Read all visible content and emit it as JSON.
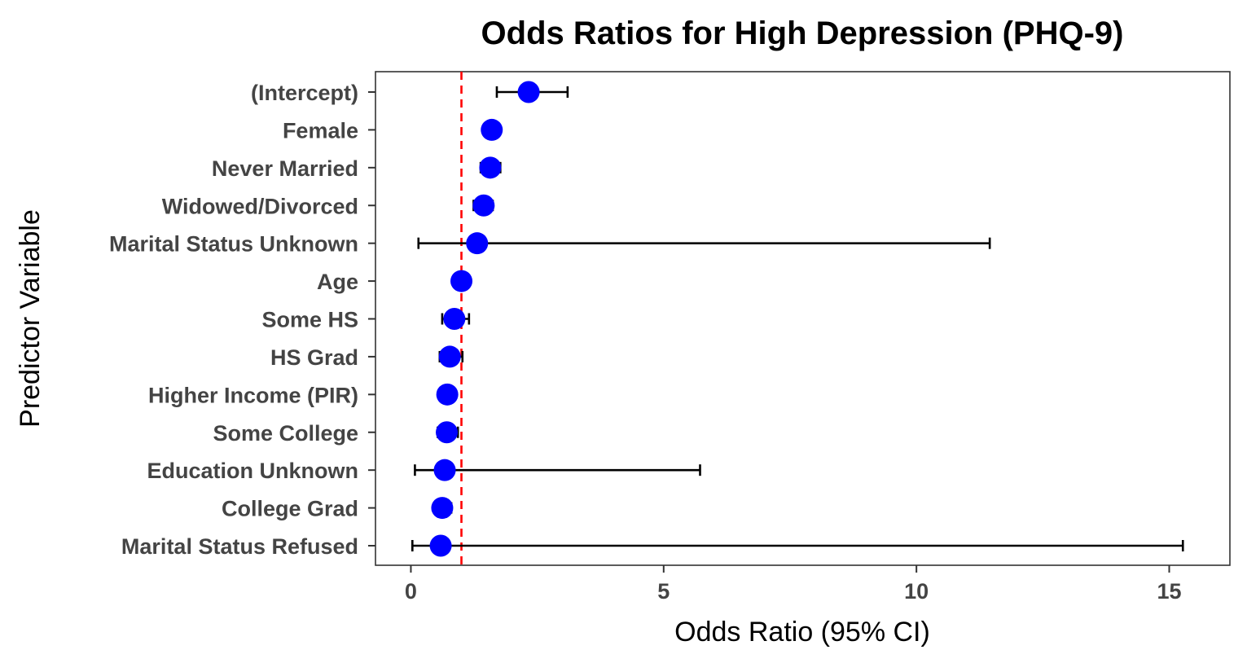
{
  "chart_data": {
    "type": "scatter",
    "title": "Odds Ratios for High Depression (PHQ-9)",
    "xlabel": "Odds Ratio (95% CI)",
    "ylabel": "Predictor Variable",
    "xlim": [
      -0.7,
      16.2
    ],
    "x_ticks": [
      0,
      5,
      10,
      15
    ],
    "reference_line": {
      "x": 1,
      "color": "#ff0000",
      "style": "dashed"
    },
    "point_color": "#0000ff",
    "grid": false,
    "legend": "none",
    "categories": [
      "(Intercept)",
      "Female",
      "Never Married",
      "Widowed/Divorced",
      "Marital Status Unknown",
      "Age",
      "Some HS",
      "HS Grad",
      "Higher Income (PIR)",
      "Some College",
      "Education Unknown",
      "College Grad",
      "Marital Status Refused"
    ],
    "series": [
      {
        "estimates": [
          2.33,
          1.6,
          1.57,
          1.44,
          1.31,
          1.0,
          0.86,
          0.77,
          0.72,
          0.71,
          0.67,
          0.62,
          0.59
        ],
        "ci_lower": [
          1.7,
          1.45,
          1.38,
          1.24,
          0.15,
          0.99,
          0.62,
          0.57,
          0.62,
          0.53,
          0.08,
          0.48,
          0.03
        ],
        "ci_upper": [
          3.1,
          1.75,
          1.77,
          1.62,
          11.45,
          1.01,
          1.15,
          1.02,
          0.84,
          0.93,
          5.72,
          0.8,
          15.27
        ]
      }
    ]
  }
}
